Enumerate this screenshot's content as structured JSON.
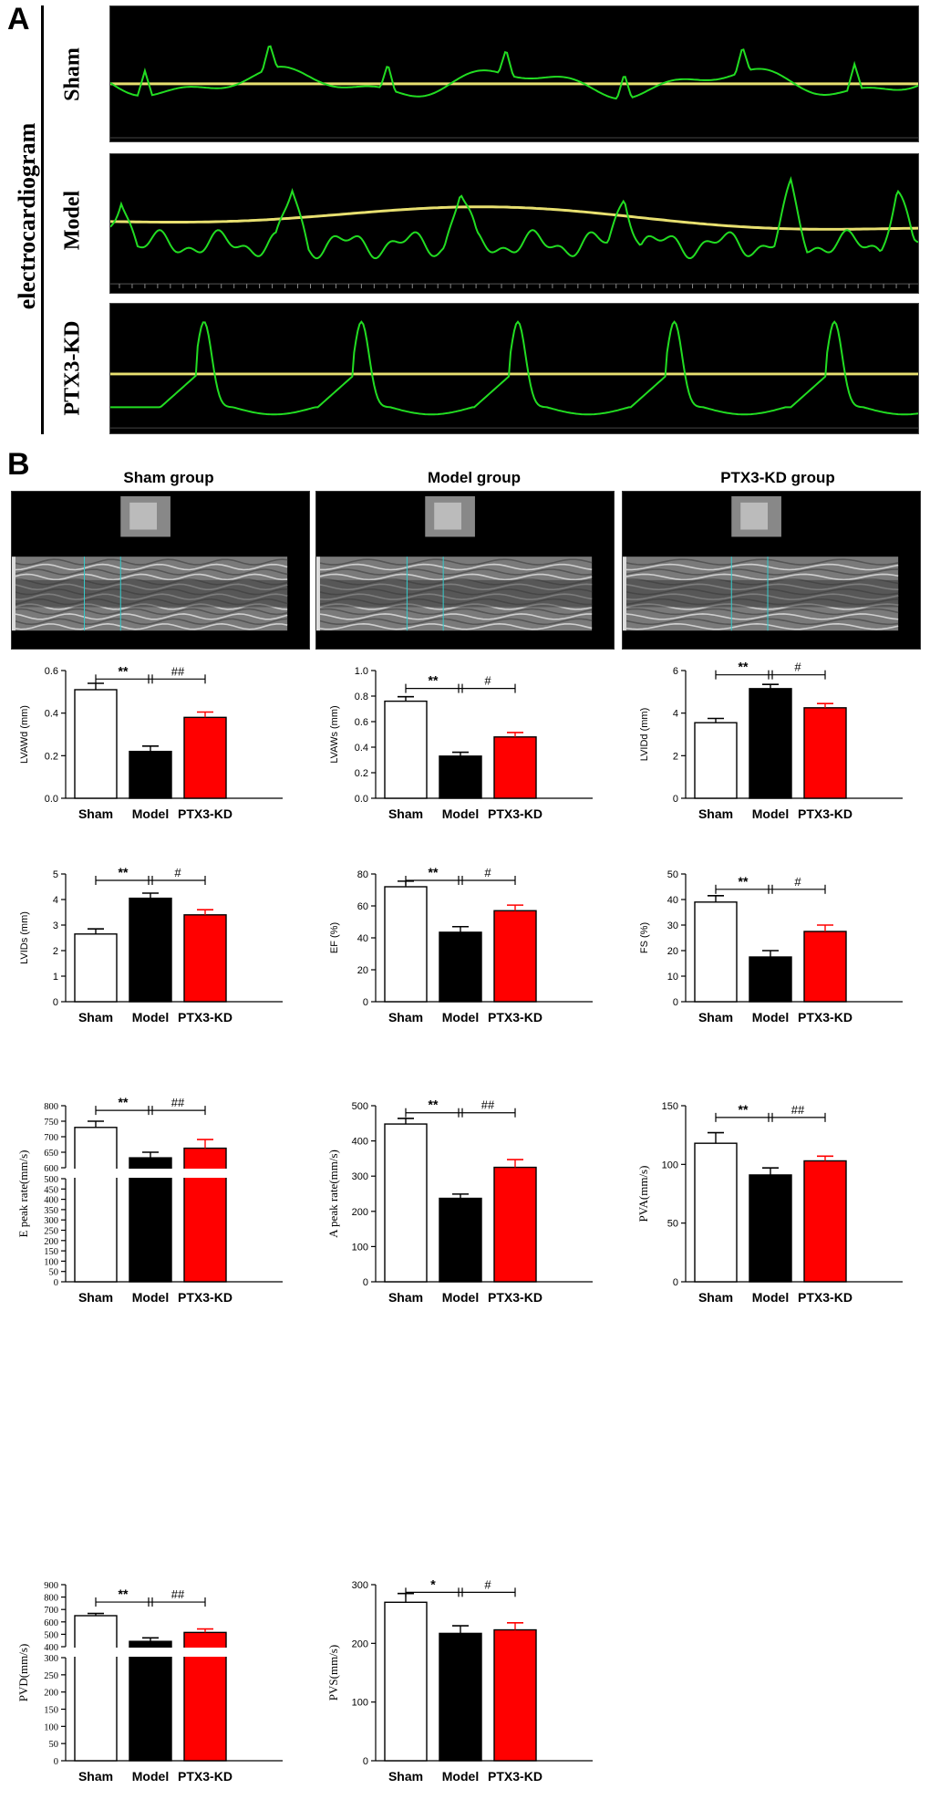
{
  "panel_a": {
    "letter": "A",
    "side_label": "electrocardiogram",
    "rows": [
      {
        "label": "Sham",
        "icon": "ecg-trace-sham"
      },
      {
        "label": "Model",
        "icon": "ecg-trace-model"
      },
      {
        "label": "PTX3-KD",
        "icon": "ecg-trace-ptx3kd"
      }
    ],
    "colors": {
      "trace": "#22dd22",
      "baseline": "#e8e070",
      "background": "#000000"
    }
  },
  "panel_b": {
    "letter": "B",
    "echo_titles": [
      "Sham group",
      "Model group",
      "PTX3-KD group"
    ],
    "echo_icon": "m-mode-echocardiogram-image"
  },
  "colors": {
    "sham": "#ffffff",
    "model": "#000000",
    "ptx3kd": "#ff0000"
  },
  "chart_data": [
    {
      "type": "bar",
      "ylabel": "LVAWd (mm)",
      "categories": [
        "Sham",
        "Model",
        "PTX3-KD"
      ],
      "values": [
        0.51,
        0.22,
        0.38
      ],
      "errors": [
        0.03,
        0.025,
        0.025
      ],
      "ylim": [
        0,
        0.6
      ],
      "ticks": [
        "0.0",
        "0.2",
        "0.4",
        "0.6"
      ],
      "sig1": "**",
      "sig2": "##",
      "sigy": 0.56
    },
    {
      "type": "bar",
      "ylabel": "LVAWs (mm)",
      "categories": [
        "Sham",
        "Model",
        "PTX3-KD"
      ],
      "values": [
        0.76,
        0.33,
        0.48
      ],
      "errors": [
        0.035,
        0.03,
        0.035
      ],
      "ylim": [
        0,
        1.0
      ],
      "ticks": [
        "0.0",
        "0.2",
        "0.4",
        "0.6",
        "0.8",
        "1.0"
      ],
      "sig1": "**",
      "sig2": "#",
      "sigy": 0.86
    },
    {
      "type": "bar",
      "ylabel": "LVIDd (mm)",
      "categories": [
        "Sham",
        "Model",
        "PTX3-KD"
      ],
      "values": [
        3.55,
        5.15,
        4.25
      ],
      "errors": [
        0.2,
        0.2,
        0.2
      ],
      "ylim": [
        0,
        6
      ],
      "ticks": [
        "0",
        "2",
        "4",
        "6"
      ],
      "sig1": "**",
      "sig2": "#",
      "sigy": 5.8
    },
    {
      "type": "bar",
      "ylabel": "LVIDs (mm)",
      "categories": [
        "Sham",
        "Model",
        "PTX3-KD"
      ],
      "values": [
        2.65,
        4.05,
        3.4
      ],
      "errors": [
        0.2,
        0.2,
        0.2
      ],
      "ylim": [
        0,
        5
      ],
      "ticks": [
        "0",
        "1",
        "2",
        "3",
        "4",
        "5"
      ],
      "sig1": "**",
      "sig2": "#",
      "sigy": 4.75
    },
    {
      "type": "bar",
      "ylabel": "EF (%)",
      "categories": [
        "Sham",
        "Model",
        "PTX3-KD"
      ],
      "values": [
        72,
        43.5,
        57
      ],
      "errors": [
        3.5,
        3.5,
        3.5
      ],
      "ylim": [
        0,
        80
      ],
      "ticks": [
        "0",
        "20",
        "40",
        "60",
        "80"
      ],
      "sig1": "**",
      "sig2": "#",
      "sigy": 76
    },
    {
      "type": "bar",
      "ylabel": "FS (%)",
      "categories": [
        "Sham",
        "Model",
        "PTX3-KD"
      ],
      "values": [
        39,
        17.5,
        27.5
      ],
      "errors": [
        2.5,
        2.5,
        2.5
      ],
      "ylim": [
        0,
        50
      ],
      "ticks": [
        "0",
        "10",
        "20",
        "30",
        "40",
        "50"
      ],
      "sig1": "**",
      "sig2": "#",
      "sigy": 44
    },
    {
      "type": "bar",
      "broken": true,
      "ylabel": "E peak rate(mm/s)",
      "categories": [
        "Sham",
        "Model",
        "PTX3-KD"
      ],
      "values": [
        730,
        632,
        663
      ],
      "errors": [
        20,
        18,
        28
      ],
      "lower_range": [
        0,
        500
      ],
      "upper_range": [
        600,
        800
      ],
      "lower_ticks": [
        "0",
        "50",
        "100",
        "150",
        "200",
        "250",
        "300",
        "350",
        "400",
        "450",
        "500"
      ],
      "upper_ticks": [
        "600",
        "650",
        "700",
        "750",
        "800"
      ],
      "sig1": "**",
      "sig2": "##",
      "sigy": 785
    },
    {
      "type": "bar",
      "ylabel": "A peak rate(mm/s)",
      "categories": [
        "Sham",
        "Model",
        "PTX3-KD"
      ],
      "values": [
        448,
        237,
        325
      ],
      "errors": [
        16,
        12,
        22
      ],
      "ylim": [
        0,
        500
      ],
      "ticks": [
        "0",
        "100",
        "200",
        "300",
        "400",
        "500"
      ],
      "sig1": "**",
      "sig2": "##",
      "sigy": 480
    },
    {
      "type": "bar",
      "ylabel": "PVA(mm/s)",
      "categories": [
        "Sham",
        "Model",
        "PTX3-KD"
      ],
      "values": [
        118,
        91,
        103
      ],
      "errors": [
        9,
        6,
        4
      ],
      "ylim": [
        0,
        150
      ],
      "ticks": [
        "0",
        "50",
        "100",
        "150"
      ],
      "sig1": "**",
      "sig2": "##",
      "sigy": 140
    },
    {
      "type": "bar",
      "broken": true,
      "ylabel": "PVD(mm/s)",
      "categories": [
        "Sham",
        "Model",
        "PTX3-KD"
      ],
      "values": [
        650,
        443,
        515
      ],
      "errors": [
        18,
        28,
        28
      ],
      "lower_range": [
        0,
        300
      ],
      "upper_range": [
        400,
        900
      ],
      "lower_ticks": [
        "0",
        "50",
        "100",
        "150",
        "200",
        "250",
        "300"
      ],
      "upper_ticks": [
        "400",
        "500",
        "600",
        "700",
        "800",
        "900"
      ],
      "sig1": "**",
      "sig2": "##",
      "sigy": 760
    },
    {
      "type": "bar",
      "ylabel": "PVS(mm/s)",
      "categories": [
        "Sham",
        "Model",
        "PTX3-KD"
      ],
      "values": [
        270,
        217,
        223
      ],
      "errors": [
        15,
        13,
        12
      ],
      "ylim": [
        0,
        300
      ],
      "ticks": [
        "0",
        "100",
        "200",
        "300"
      ],
      "sig1": "*",
      "sig2": "#",
      "sigy": 287
    }
  ]
}
